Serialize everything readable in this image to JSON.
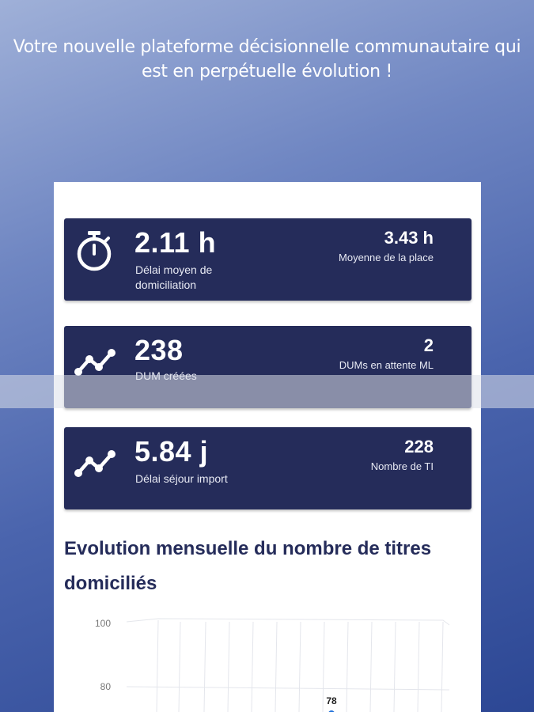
{
  "tagline": "Votre nouvelle plateforme décisionnelle communautaire qui est en perpétuelle évolution !",
  "cards": [
    {
      "icon": "stopwatch-icon",
      "main_value": "2.11 h",
      "main_label": "Délai moyen de domiciliation",
      "side_value": "3.43 h",
      "side_label": "Moyenne de la place"
    },
    {
      "icon": "trend-line-icon",
      "main_value": "238",
      "main_label": "DUM créées",
      "side_value": "2",
      "side_label": "DUMs en attente ML"
    },
    {
      "icon": "trend-line-icon",
      "main_value": "5.84 j",
      "main_label": "Délai séjour import",
      "side_value": "228",
      "side_label": "Nombre de TI"
    }
  ],
  "chart_title": "Evolution mensuelle du nombre de titres domiciliés",
  "chart_data": {
    "type": "line",
    "title": "Evolution mensuelle du nombre de titres domiciliés",
    "y_ticks": [
      "100",
      "80"
    ],
    "ylim": [
      0,
      100
    ],
    "visible_points": [
      {
        "value": 78,
        "label": "78"
      }
    ],
    "grid": true
  },
  "colors": {
    "card_bg": "#252c5a",
    "title": "#252c5a",
    "accent_point": "#1e6fd9"
  }
}
